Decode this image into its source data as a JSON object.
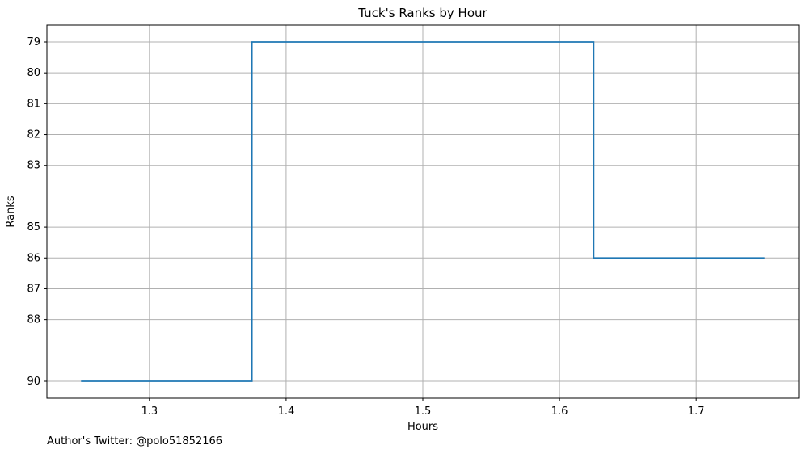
{
  "chart_data": {
    "type": "line",
    "title": "Tuck's Ranks by Hour",
    "xlabel": "Hours",
    "ylabel": "Ranks",
    "footer_text": "Author's Twitter: @polo51852166",
    "xlim": [
      1.225,
      1.775
    ],
    "ylim": [
      90.55,
      78.45
    ],
    "y_inverted": true,
    "x_ticks": [
      1.3,
      1.4,
      1.5,
      1.6,
      1.7
    ],
    "x_tick_labels": [
      "1.3",
      "1.4",
      "1.5",
      "1.6",
      "1.7"
    ],
    "y_ticks": [
      79,
      80,
      81,
      82,
      83,
      85,
      86,
      87,
      88,
      90
    ],
    "y_tick_labels": [
      "79",
      "80",
      "81",
      "82",
      "83",
      "85",
      "86",
      "87",
      "88",
      "90"
    ],
    "grid": true,
    "step_mode": "mid",
    "series": [
      {
        "x": [
          1.25,
          1.5,
          1.75
        ],
        "values": [
          90,
          79,
          86
        ],
        "color": "#1f77b4"
      }
    ]
  }
}
